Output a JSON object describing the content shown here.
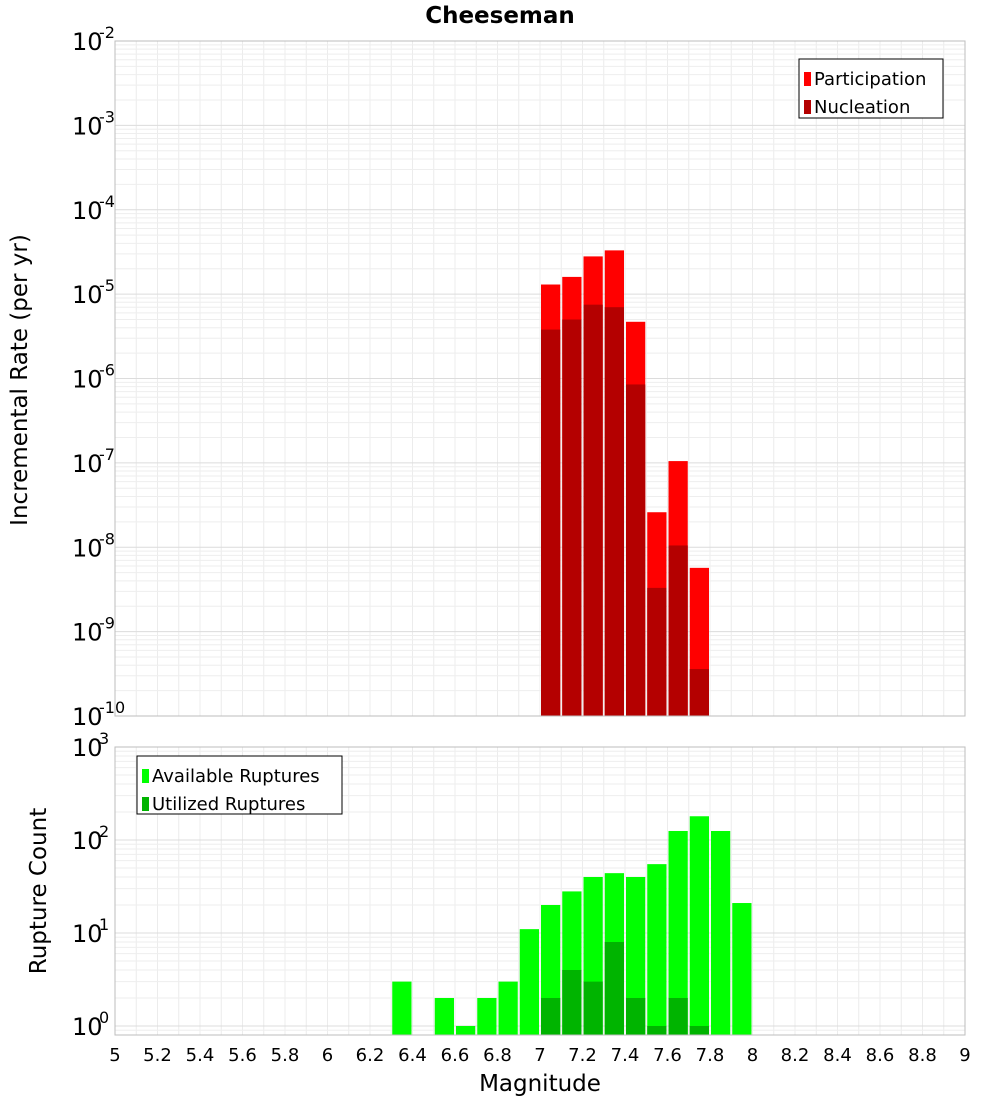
{
  "chart_data": [
    {
      "type": "bar",
      "title": "Cheeseman",
      "xlabel": "Magnitude",
      "ylabel": "Incremental Rate (per yr)",
      "yscale": "log",
      "ylim": [
        1e-10,
        0.01
      ],
      "xlim": [
        5,
        9
      ],
      "grid": true,
      "legend_position": "top-right",
      "y_ticks": [
        {
          "base": "10",
          "exp": "-2",
          "value": 0.01
        },
        {
          "base": "10",
          "exp": "-3",
          "value": 0.001
        },
        {
          "base": "10",
          "exp": "-4",
          "value": 0.0001
        },
        {
          "base": "10",
          "exp": "-5",
          "value": 1e-05
        },
        {
          "base": "10",
          "exp": "-6",
          "value": 1e-06
        },
        {
          "base": "10",
          "exp": "-7",
          "value": 1e-07
        },
        {
          "base": "10",
          "exp": "-8",
          "value": 1e-08
        },
        {
          "base": "10",
          "exp": "-9",
          "value": 1e-09
        },
        {
          "base": "10",
          "exp": "-10",
          "value": 1e-10
        }
      ],
      "x": [
        7.05,
        7.15,
        7.25,
        7.35,
        7.45,
        7.55,
        7.65,
        7.75
      ],
      "series": [
        {
          "name": "Participation",
          "color": "#ff0000",
          "values": [
            1.3e-05,
            1.6e-05,
            2.8e-05,
            3.3e-05,
            4.7e-06,
            2.6e-08,
            1.05e-07,
            5.7e-09
          ]
        },
        {
          "name": "Nucleation",
          "color": "#b40000",
          "values": [
            3.8e-06,
            5e-06,
            7.5e-06,
            7e-06,
            8.5e-07,
            3.3e-09,
            1.05e-08,
            3.6e-10
          ]
        }
      ]
    },
    {
      "type": "bar",
      "xlabel": "Magnitude",
      "ylabel": "Rupture Count",
      "yscale": "log",
      "ylim": [
        0.8,
        1000
      ],
      "xlim": [
        5,
        9
      ],
      "grid": true,
      "legend_position": "top-left",
      "y_ticks": [
        {
          "base": "10",
          "exp": "3",
          "value": 1000
        },
        {
          "base": "10",
          "exp": "2",
          "value": 100
        },
        {
          "base": "10",
          "exp": "1",
          "value": 10
        },
        {
          "base": "10",
          "exp": "0",
          "value": 1
        }
      ],
      "x_ticks": [
        "5",
        "5.2",
        "5.4",
        "5.6",
        "5.8",
        "6",
        "6.2",
        "6.4",
        "6.6",
        "6.8",
        "7",
        "7.2",
        "7.4",
        "7.6",
        "7.8",
        "8",
        "8.2",
        "8.4",
        "8.6",
        "8.8",
        "9"
      ],
      "x": [
        6.35,
        6.45,
        6.55,
        6.65,
        6.75,
        6.85,
        6.95,
        7.05,
        7.15,
        7.25,
        7.35,
        7.45,
        7.55,
        7.65,
        7.75,
        7.85,
        7.95
      ],
      "series": [
        {
          "name": "Available Ruptures",
          "color": "#00ff00",
          "values": [
            3,
            0,
            2,
            1,
            2,
            3,
            11,
            20,
            28,
            40,
            44,
            40,
            55,
            125,
            180,
            125,
            21
          ]
        },
        {
          "name": "Utilized Ruptures",
          "color": "#00b400",
          "values": [
            0,
            0,
            0,
            0,
            0,
            0,
            0,
            2,
            4,
            3,
            8,
            2,
            1,
            2,
            1,
            0,
            0
          ]
        }
      ]
    }
  ]
}
